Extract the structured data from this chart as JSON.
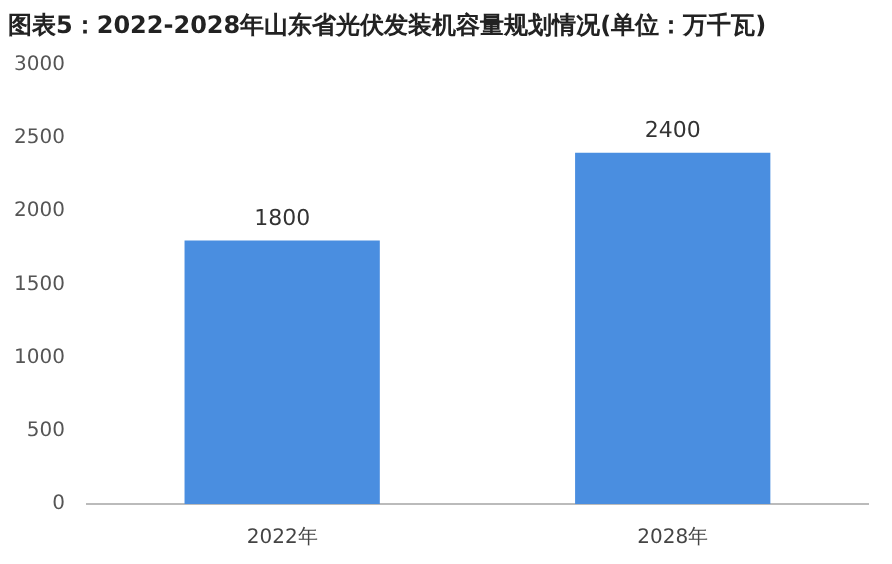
{
  "chart_data": {
    "type": "bar",
    "title": "图表5：2022-2028年山东省光伏发装机容量规划情况(单位：万千瓦)",
    "categories": [
      "2022年",
      "2028年"
    ],
    "values": [
      1800,
      2400
    ],
    "color": "#4a8ee0",
    "ylim": [
      0,
      3000
    ],
    "yticks": [
      0,
      500,
      1000,
      1500,
      2000,
      2500,
      3000
    ],
    "grid": false,
    "legend": false,
    "data_labels": true
  }
}
